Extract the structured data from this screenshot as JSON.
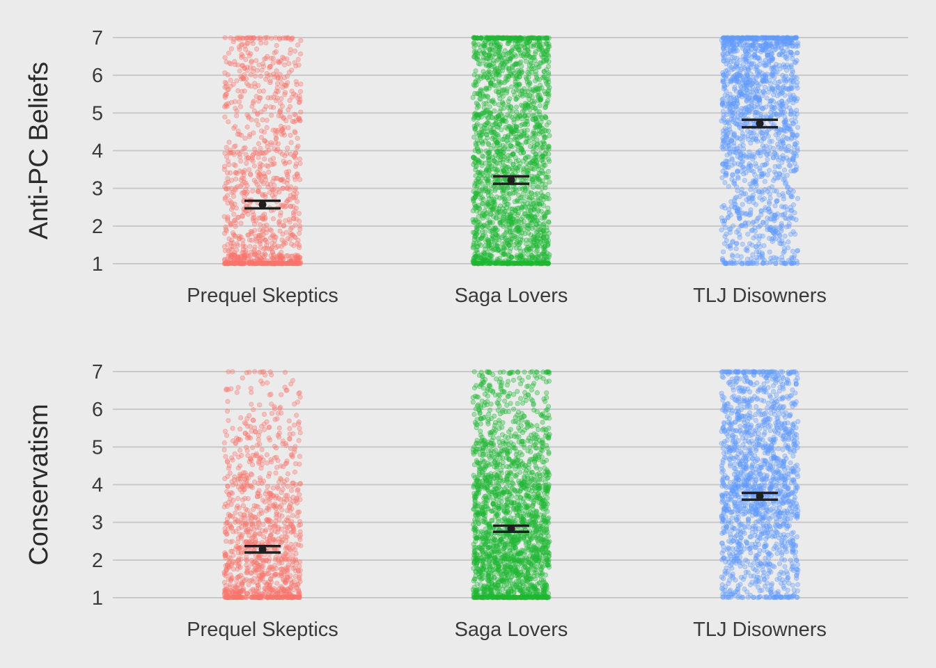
{
  "chart_data": [
    {
      "type": "scatter",
      "subtype": "jittered strip plot with mean and error bars",
      "title": "",
      "xlabel": "",
      "ylabel": "Anti-PC Beliefs",
      "categories": [
        "Prequel Skeptics",
        "Saga Lovers",
        "TLJ Disowners"
      ],
      "yticks": [
        1,
        2,
        3,
        4,
        5,
        6,
        7
      ],
      "ylim": [
        1,
        7
      ],
      "grid": "horizontal",
      "legend": "none",
      "colors": [
        "#f8766d",
        "#1fb833",
        "#619cff"
      ],
      "mean": [
        2.57,
        3.22,
        4.72
      ],
      "error_low": [
        2.47,
        3.12,
        4.62
      ],
      "error_high": [
        2.67,
        3.32,
        4.82
      ],
      "point_counts": [
        1050,
        2000,
        1500
      ],
      "point_distribution": {
        "Prequel Skeptics": {
          "values": [
            1,
            1.5,
            2,
            2.5,
            3,
            3.5,
            4,
            4.5,
            5,
            5.5,
            6,
            6.5,
            7
          ],
          "weights": [
            0.3,
            0.08,
            0.08,
            0.07,
            0.07,
            0.06,
            0.06,
            0.05,
            0.05,
            0.05,
            0.05,
            0.04,
            0.04
          ]
        },
        "Saga Lovers": {
          "values": [
            1,
            1.5,
            2,
            2.5,
            3,
            3.5,
            4,
            4.5,
            5,
            5.5,
            6,
            6.5,
            7
          ],
          "weights": [
            0.13,
            0.08,
            0.08,
            0.07,
            0.07,
            0.07,
            0.07,
            0.07,
            0.07,
            0.06,
            0.06,
            0.07,
            0.1
          ]
        },
        "TLJ Disowners": {
          "values": [
            1,
            1.5,
            2,
            2.5,
            3,
            3.5,
            4,
            4.5,
            5,
            5.5,
            6,
            6.5,
            7
          ],
          "weights": [
            0.05,
            0.04,
            0.05,
            0.05,
            0.05,
            0.06,
            0.07,
            0.08,
            0.09,
            0.1,
            0.1,
            0.1,
            0.16
          ]
        }
      }
    },
    {
      "type": "scatter",
      "subtype": "jittered strip plot with mean and error bars",
      "title": "",
      "xlabel": "",
      "ylabel": "Conservatism",
      "categories": [
        "Prequel Skeptics",
        "Saga Lovers",
        "TLJ Disowners"
      ],
      "yticks": [
        1,
        2,
        3,
        4,
        5,
        6,
        7
      ],
      "ylim": [
        1,
        7
      ],
      "grid": "horizontal",
      "legend": "none",
      "colors": [
        "#f8766d",
        "#1fb833",
        "#619cff"
      ],
      "mean": [
        2.28,
        2.83,
        3.69
      ],
      "error_low": [
        2.2,
        2.75,
        3.6
      ],
      "error_high": [
        2.37,
        2.91,
        3.78
      ],
      "point_counts": [
        1050,
        2000,
        1500
      ],
      "point_distribution": {
        "Prequel Skeptics": {
          "values": [
            1,
            1.5,
            2,
            2.5,
            3,
            3.5,
            4,
            4.5,
            5,
            5.5,
            6,
            6.5,
            7
          ],
          "weights": [
            0.22,
            0.12,
            0.13,
            0.11,
            0.1,
            0.08,
            0.07,
            0.05,
            0.04,
            0.03,
            0.02,
            0.02,
            0.01
          ]
        },
        "Saga Lovers": {
          "values": [
            1,
            1.5,
            2,
            2.5,
            3,
            3.5,
            4,
            4.5,
            5,
            5.5,
            6,
            6.5,
            7
          ],
          "weights": [
            0.14,
            0.1,
            0.12,
            0.11,
            0.1,
            0.1,
            0.1,
            0.06,
            0.05,
            0.04,
            0.03,
            0.03,
            0.02
          ]
        },
        "TLJ Disowners": {
          "values": [
            1,
            1.5,
            2,
            2.5,
            3,
            3.5,
            4,
            4.5,
            5,
            5.5,
            6,
            6.5,
            7
          ],
          "weights": [
            0.05,
            0.05,
            0.07,
            0.07,
            0.08,
            0.1,
            0.12,
            0.1,
            0.09,
            0.08,
            0.07,
            0.06,
            0.06
          ]
        }
      }
    }
  ]
}
